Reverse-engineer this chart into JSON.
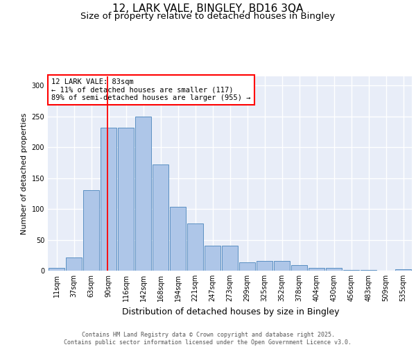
{
  "title1": "12, LARK VALE, BINGLEY, BD16 3QA",
  "title2": "Size of property relative to detached houses in Bingley",
  "xlabel": "Distribution of detached houses by size in Bingley",
  "ylabel": "Number of detached properties",
  "categories": [
    "11sqm",
    "37sqm",
    "63sqm",
    "90sqm",
    "116sqm",
    "142sqm",
    "168sqm",
    "194sqm",
    "221sqm",
    "247sqm",
    "273sqm",
    "299sqm",
    "325sqm",
    "352sqm",
    "378sqm",
    "404sqm",
    "430sqm",
    "456sqm",
    "483sqm",
    "509sqm",
    "535sqm"
  ],
  "values": [
    4,
    21,
    130,
    232,
    232,
    250,
    172,
    103,
    76,
    40,
    40,
    13,
    16,
    16,
    9,
    4,
    4,
    1,
    1,
    0,
    2
  ],
  "bar_color": "#aec6e8",
  "bar_edge_color": "#5a8fc2",
  "background_color": "#e8edf8",
  "grid_color": "#ffffff",
  "annotation_text": "12 LARK VALE: 83sqm\n← 11% of detached houses are smaller (117)\n89% of semi-detached houses are larger (955) →",
  "red_line_x": 2.95,
  "ylim": [
    0,
    315
  ],
  "yticks": [
    0,
    50,
    100,
    150,
    200,
    250,
    300
  ],
  "footer_text": "Contains HM Land Registry data © Crown copyright and database right 2025.\nContains public sector information licensed under the Open Government Licence v3.0.",
  "title1_fontsize": 11,
  "title2_fontsize": 9.5,
  "xlabel_fontsize": 9,
  "ylabel_fontsize": 8,
  "tick_fontsize": 7,
  "annotation_fontsize": 7.5,
  "footer_fontsize": 6
}
